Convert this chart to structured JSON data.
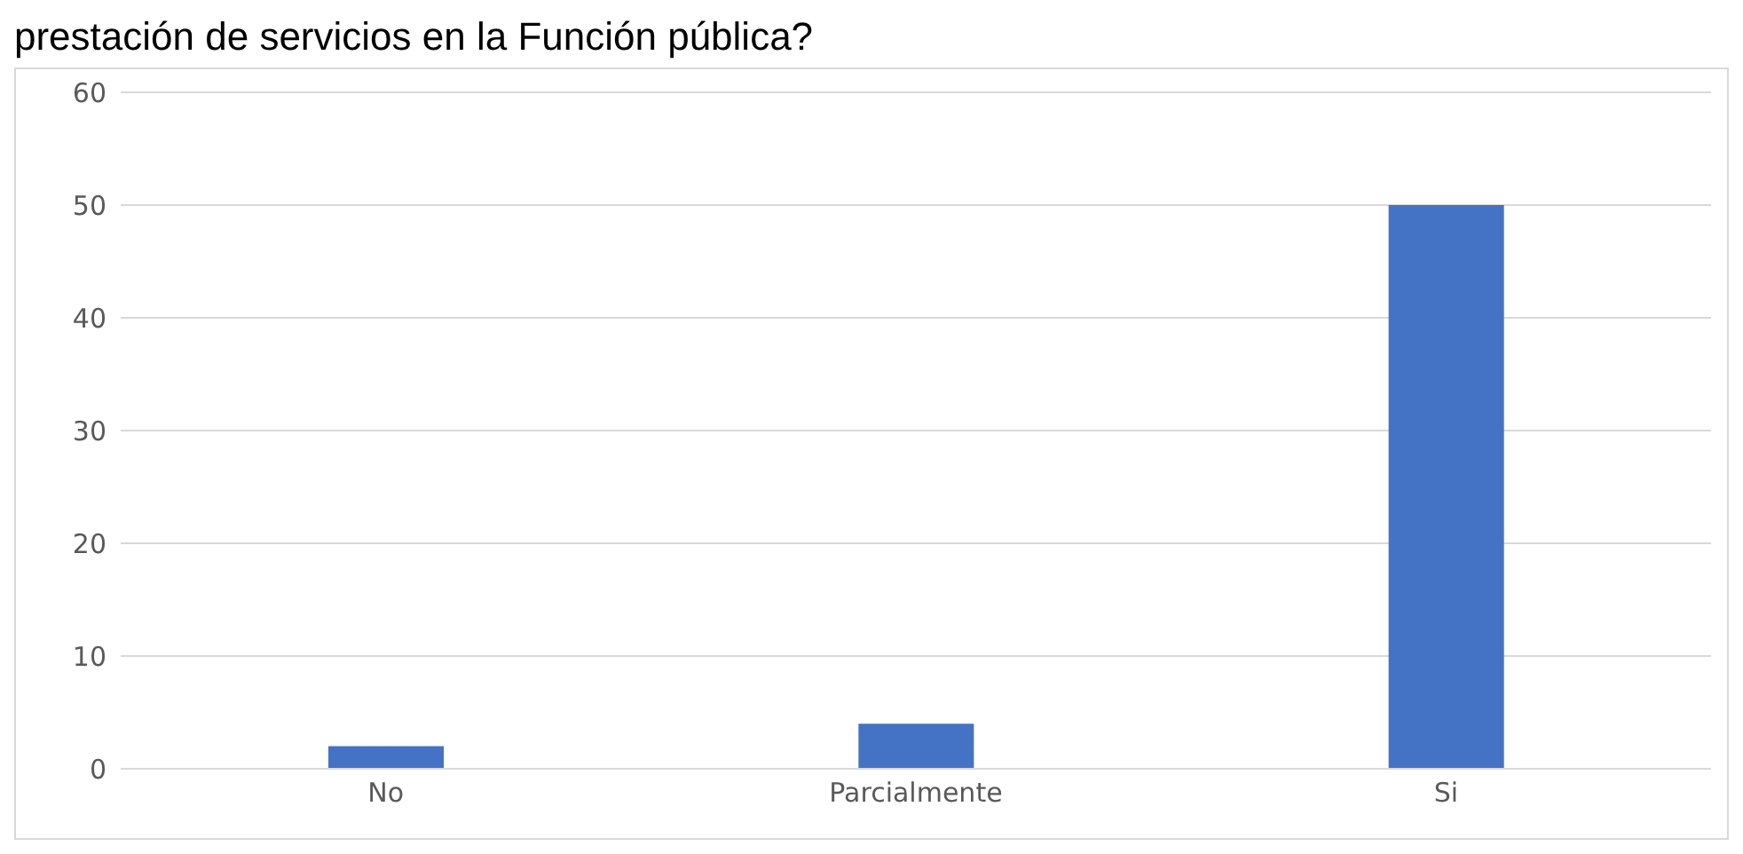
{
  "chart_data": {
    "type": "bar",
    "title": "prestación de servicios en la Función pública?",
    "categories": [
      "No",
      "Parcialmente",
      "Si"
    ],
    "values": [
      2,
      4,
      50
    ],
    "color": "#4472c4",
    "ylim": [
      0,
      60
    ],
    "yticks": [
      0,
      10,
      20,
      30,
      40,
      50,
      60
    ],
    "grid": "y",
    "legend": false
  }
}
